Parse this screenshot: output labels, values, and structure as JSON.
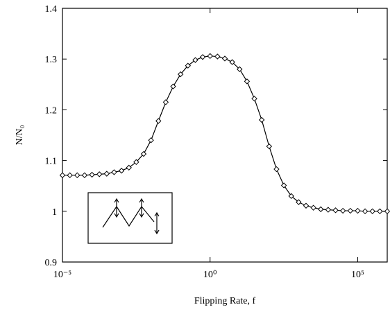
{
  "chart_data": {
    "type": "line",
    "x_label": "Flipping Rate, f",
    "y_label": "N/N₀",
    "xscale": "log",
    "xlim": [
      1e-05,
      1000000
    ],
    "ylim": [
      0.9,
      1.4
    ],
    "xticks": [
      {
        "value": 1e-05,
        "label": "10⁻⁵"
      },
      {
        "value": 1,
        "label": "10⁰"
      },
      {
        "value": 100000,
        "label": "10⁵"
      }
    ],
    "yticks": [
      0.9,
      1,
      1.1,
      1.2,
      1.3,
      1.4
    ],
    "x": [
      1e-05,
      1.778e-05,
      3.162e-05,
      5.623e-05,
      0.0001,
      0.0001778,
      0.0003162,
      0.0005623,
      0.001,
      0.001778,
      0.003162,
      0.005623,
      0.01,
      0.01778,
      0.03162,
      0.05623,
      0.1,
      0.1778,
      0.3162,
      0.5623,
      1,
      1.778,
      3.162,
      5.623,
      10,
      17.78,
      31.62,
      56.23,
      100,
      177.8,
      316.2,
      562.3,
      1000,
      1778,
      3162,
      5623,
      10000,
      17780,
      31620,
      56230,
      100000,
      177800,
      316200,
      562300,
      1000000
    ],
    "series": [
      {
        "color": "#000000",
        "values": [
          1.071,
          1.071,
          1.071,
          1.071,
          1.072,
          1.073,
          1.074,
          1.077,
          1.08,
          1.086,
          1.097,
          1.113,
          1.14,
          1.178,
          1.215,
          1.246,
          1.27,
          1.287,
          1.298,
          1.304,
          1.306,
          1.305,
          1.301,
          1.294,
          1.28,
          1.256,
          1.222,
          1.18,
          1.128,
          1.083,
          1.051,
          1.03,
          1.018,
          1.011,
          1.007,
          1.004,
          1.003,
          1.002,
          1.001,
          1.001,
          1.001,
          1.0,
          1.0,
          1.0,
          1.0
        ]
      }
    ]
  }
}
